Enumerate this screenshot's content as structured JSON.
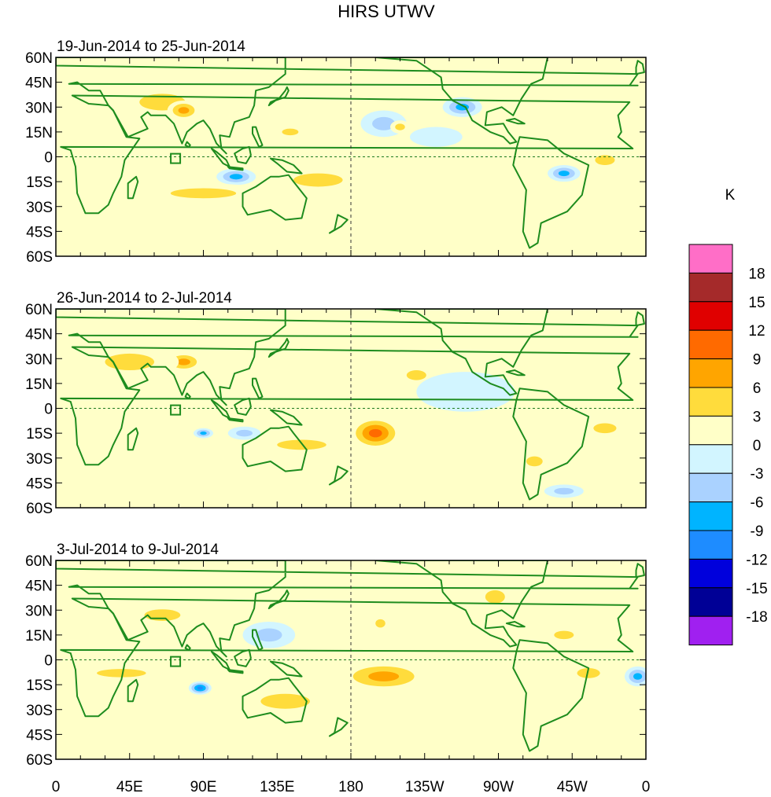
{
  "title": "HIRS UTWV",
  "colorbar": {
    "unit": "K",
    "bins": [
      {
        "color": "#ff6ec7"
      },
      {
        "color": "#a52a2a"
      },
      {
        "color": "#e00000"
      },
      {
        "color": "#ff6a00"
      },
      {
        "color": "#ffa500"
      },
      {
        "color": "#ffdc3c"
      },
      {
        "color": "#ffffc8"
      },
      {
        "color": "#d2f5ff"
      },
      {
        "color": "#aad2ff"
      },
      {
        "color": "#00b4ff"
      },
      {
        "color": "#1e8cff"
      },
      {
        "color": "#0000dc"
      },
      {
        "color": "#000096"
      },
      {
        "color": "#a020f0"
      }
    ],
    "labels": [
      "18",
      "15",
      "12",
      "9",
      "6",
      "3",
      "0",
      "-3",
      "-6",
      "-9",
      "-12",
      "-15",
      "-18"
    ]
  },
  "xaxis": {
    "labels": [
      "0",
      "45E",
      "90E",
      "135E",
      "180",
      "135W",
      "90W",
      "45W",
      "0"
    ]
  },
  "yaxis": {
    "labels": [
      "60N",
      "45N",
      "30N",
      "15N",
      "0",
      "15S",
      "30S",
      "45S",
      "60S"
    ]
  },
  "colors": {
    "land_outline": "#1e8c1e",
    "grid": "#1e7a1e",
    "background_field": "#ffffc8"
  },
  "panels": [
    {
      "label": "19-Jun-2014 to 25-Jun-2014",
      "anomalies": [
        {
          "lon": 65,
          "lat": 33,
          "rlon": 28,
          "rlat": 10,
          "value": 5
        },
        {
          "lon": 78,
          "lat": 28,
          "rlon": 10,
          "rlat": 6,
          "value": 8
        },
        {
          "lon": 110,
          "lat": -12,
          "rlon": 12,
          "rlat": 5,
          "value": -8
        },
        {
          "lon": 160,
          "lat": -14,
          "rlon": 30,
          "rlat": 8,
          "value": 5
        },
        {
          "lon": 90,
          "lat": -22,
          "rlon": 40,
          "rlat": 6,
          "value": 4
        },
        {
          "lon": 248,
          "lat": 30,
          "rlon": 12,
          "rlat": 6,
          "value": -9
        },
        {
          "lon": 232,
          "lat": 12,
          "rlon": 16,
          "rlat": 6,
          "value": -3
        },
        {
          "lon": 310,
          "lat": -10,
          "rlon": 10,
          "rlat": 5,
          "value": -7
        },
        {
          "lon": 335,
          "lat": -2,
          "rlon": 12,
          "rlat": 6,
          "value": 4
        },
        {
          "lon": 143,
          "lat": 15,
          "rlon": 10,
          "rlat": 4,
          "value": 4
        },
        {
          "lon": 200,
          "lat": 20,
          "rlon": 14,
          "rlat": 8,
          "value": -4
        },
        {
          "lon": 210,
          "lat": 18,
          "rlon": 6,
          "rlat": 4,
          "value": 4
        }
      ]
    },
    {
      "label": "26-Jun-2014 to 2-Jul-2014",
      "anomalies": [
        {
          "lon": 78,
          "lat": 28,
          "rlon": 12,
          "rlat": 6,
          "value": 9
        },
        {
          "lon": 45,
          "lat": 28,
          "rlon": 30,
          "rlat": 10,
          "value": 4
        },
        {
          "lon": 195,
          "lat": -15,
          "rlon": 16,
          "rlat": 10,
          "value": 10
        },
        {
          "lon": 220,
          "lat": 20,
          "rlon": 12,
          "rlat": 6,
          "value": 5
        },
        {
          "lon": 90,
          "lat": -15,
          "rlon": 6,
          "rlat": 3,
          "value": -9
        },
        {
          "lon": 115,
          "lat": -15,
          "rlon": 10,
          "rlat": 4,
          "value": -4
        },
        {
          "lon": 335,
          "lat": -12,
          "rlon": 14,
          "rlat": 6,
          "value": 6
        },
        {
          "lon": 292,
          "lat": -32,
          "rlon": 10,
          "rlat": 6,
          "value": 6
        },
        {
          "lon": 310,
          "lat": -50,
          "rlon": 12,
          "rlat": 4,
          "value": -6
        },
        {
          "lon": 150,
          "lat": -22,
          "rlon": 30,
          "rlat": 6,
          "value": 4
        },
        {
          "lon": 250,
          "lat": 10,
          "rlon": 30,
          "rlat": 12,
          "value": -3
        }
      ]
    },
    {
      "label": "3-Jul-2014 to 9-Jul-2014",
      "anomalies": [
        {
          "lon": 193,
          "lat": -10,
          "rlon": 10,
          "rlat": 5,
          "value": 13
        },
        {
          "lon": 200,
          "lat": -10,
          "rlon": 28,
          "rlat": 9,
          "value": 7
        },
        {
          "lon": 88,
          "lat": -17,
          "rlon": 7,
          "rlat": 4,
          "value": -10
        },
        {
          "lon": 140,
          "lat": -25,
          "rlon": 30,
          "rlat": 9,
          "value": 5
        },
        {
          "lon": 310,
          "lat": 15,
          "rlon": 12,
          "rlat": 5,
          "value": 6
        },
        {
          "lon": 325,
          "lat": -8,
          "rlon": 14,
          "rlat": 6,
          "value": 6
        },
        {
          "lon": 355,
          "lat": -10,
          "rlon": 8,
          "rlat": 6,
          "value": -8
        },
        {
          "lon": 65,
          "lat": 27,
          "rlon": 22,
          "rlat": 7,
          "value": 6
        },
        {
          "lon": 268,
          "lat": 38,
          "rlon": 12,
          "rlat": 8,
          "value": 4
        },
        {
          "lon": 40,
          "lat": -8,
          "rlon": 30,
          "rlat": 5,
          "value": 4
        },
        {
          "lon": 198,
          "lat": 22,
          "rlon": 6,
          "rlat": 5,
          "value": 6
        },
        {
          "lon": 130,
          "lat": 15,
          "rlon": 16,
          "rlat": 8,
          "value": -5
        }
      ]
    }
  ]
}
